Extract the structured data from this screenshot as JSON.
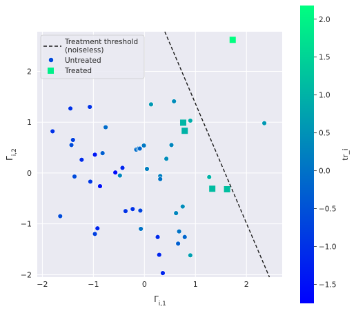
{
  "chart_data": {
    "type": "scatter",
    "xlabel": "Γ_{i,1}",
    "ylabel": "Γ_{i,2}",
    "xlim": [
      -2.1,
      2.7
    ],
    "ylim": [
      -2.05,
      2.78
    ],
    "xticks": [
      -2,
      -1,
      0,
      1,
      2
    ],
    "yticks": [
      -2,
      -1,
      0,
      1,
      2
    ],
    "grid": true,
    "legend_location": "upper-left",
    "legend": [
      {
        "label": "Treatment threshold\n(noiseless)",
        "marker": "dashed-line"
      },
      {
        "label": "Untreated",
        "marker": "circle"
      },
      {
        "label": "Treated",
        "marker": "square"
      }
    ],
    "threshold_line": {
      "x": [
        0.4,
        2.45
      ],
      "y": [
        2.78,
        -2.05
      ],
      "style": "dashed",
      "color": "#1a1a1a"
    },
    "colorbar": {
      "label": "tr_i",
      "range": [
        -1.75,
        2.18
      ],
      "ticks": [
        -1.5,
        -1.0,
        -0.5,
        0.0,
        0.5,
        1.0,
        1.5,
        2.0
      ],
      "tick_labels": [
        "−1.5",
        "−1.0",
        "−0.5",
        "0.0",
        "0.5",
        "1.0",
        "1.5",
        "2.0"
      ],
      "colormap": "winter"
    },
    "series": [
      {
        "name": "Untreated",
        "marker": "circle",
        "points": [
          {
            "x": -1.8,
            "y": 0.82,
            "c": -1.0
          },
          {
            "x": -1.45,
            "y": 1.27,
            "c": -1.0
          },
          {
            "x": -1.4,
            "y": 0.65,
            "c": -0.8
          },
          {
            "x": -1.43,
            "y": 0.55,
            "c": -0.6
          },
          {
            "x": -1.37,
            "y": -0.07,
            "c": -0.6
          },
          {
            "x": -1.23,
            "y": 0.26,
            "c": -1.1
          },
          {
            "x": -1.07,
            "y": 1.3,
            "c": -1.0
          },
          {
            "x": -1.06,
            "y": -0.17,
            "c": -0.9
          },
          {
            "x": -0.97,
            "y": 0.36,
            "c": -1.4
          },
          {
            "x": -0.97,
            "y": -1.2,
            "c": -0.8
          },
          {
            "x": -0.92,
            "y": -1.09,
            "c": -1.2
          },
          {
            "x": -0.87,
            "y": -0.26,
            "c": -1.5
          },
          {
            "x": -0.82,
            "y": 0.39,
            "c": -0.3
          },
          {
            "x": -0.76,
            "y": 0.9,
            "c": -0.1
          },
          {
            "x": -1.65,
            "y": -0.85,
            "c": -0.6
          },
          {
            "x": -0.57,
            "y": 0.01,
            "c": -1.6
          },
          {
            "x": -0.48,
            "y": -0.05,
            "c": 0.3
          },
          {
            "x": -0.43,
            "y": 0.1,
            "c": -1.2
          },
          {
            "x": -0.37,
            "y": -0.75,
            "c": -1.0
          },
          {
            "x": -0.23,
            "y": -0.71,
            "c": -1.0
          },
          {
            "x": -0.16,
            "y": 0.46,
            "c": -0.1
          },
          {
            "x": -0.12,
            "y": 0.48,
            "c": 0.0
          },
          {
            "x": -0.09,
            "y": 0.48,
            "c": -0.2
          },
          {
            "x": -0.08,
            "y": -0.74,
            "c": -0.7
          },
          {
            "x": -0.07,
            "y": -1.1,
            "c": 0.0
          },
          {
            "x": -0.01,
            "y": 0.54,
            "c": 0.1
          },
          {
            "x": 0.05,
            "y": 0.08,
            "c": 0.2
          },
          {
            "x": 0.13,
            "y": 1.35,
            "c": 0.6
          },
          {
            "x": 0.26,
            "y": -1.26,
            "c": -1.1
          },
          {
            "x": 0.29,
            "y": -1.61,
            "c": -1.2
          },
          {
            "x": 0.31,
            "y": -0.06,
            "c": 0.2
          },
          {
            "x": 0.31,
            "y": -0.12,
            "c": 0.0
          },
          {
            "x": 0.36,
            "y": -1.97,
            "c": -1.2
          },
          {
            "x": 0.43,
            "y": 0.28,
            "c": 0.4
          },
          {
            "x": 0.53,
            "y": 0.55,
            "c": 0.3
          },
          {
            "x": 0.58,
            "y": 1.41,
            "c": 0.4
          },
          {
            "x": 0.62,
            "y": -0.79,
            "c": 0.3
          },
          {
            "x": 0.68,
            "y": -1.15,
            "c": 0.0
          },
          {
            "x": 0.66,
            "y": -1.39,
            "c": -0.3
          },
          {
            "x": 0.75,
            "y": -0.66,
            "c": 0.4
          },
          {
            "x": 0.79,
            "y": -1.26,
            "c": -0.2
          },
          {
            "x": 0.9,
            "y": 1.03,
            "c": 0.9
          },
          {
            "x": 0.9,
            "y": -1.62,
            "c": 0.7
          },
          {
            "x": 1.27,
            "y": -0.08,
            "c": 1.0
          },
          {
            "x": 2.35,
            "y": 0.98,
            "c": 0.6
          }
        ]
      },
      {
        "name": "Treated",
        "marker": "square",
        "points": [
          {
            "x": 0.76,
            "y": 0.99,
            "c": 1.05
          },
          {
            "x": 0.79,
            "y": 0.83,
            "c": 1.0
          },
          {
            "x": 1.33,
            "y": -0.31,
            "c": 1.15
          },
          {
            "x": 1.62,
            "y": -0.32,
            "c": 1.2
          },
          {
            "x": 1.73,
            "y": 2.62,
            "c": 2.18
          }
        ]
      }
    ]
  }
}
